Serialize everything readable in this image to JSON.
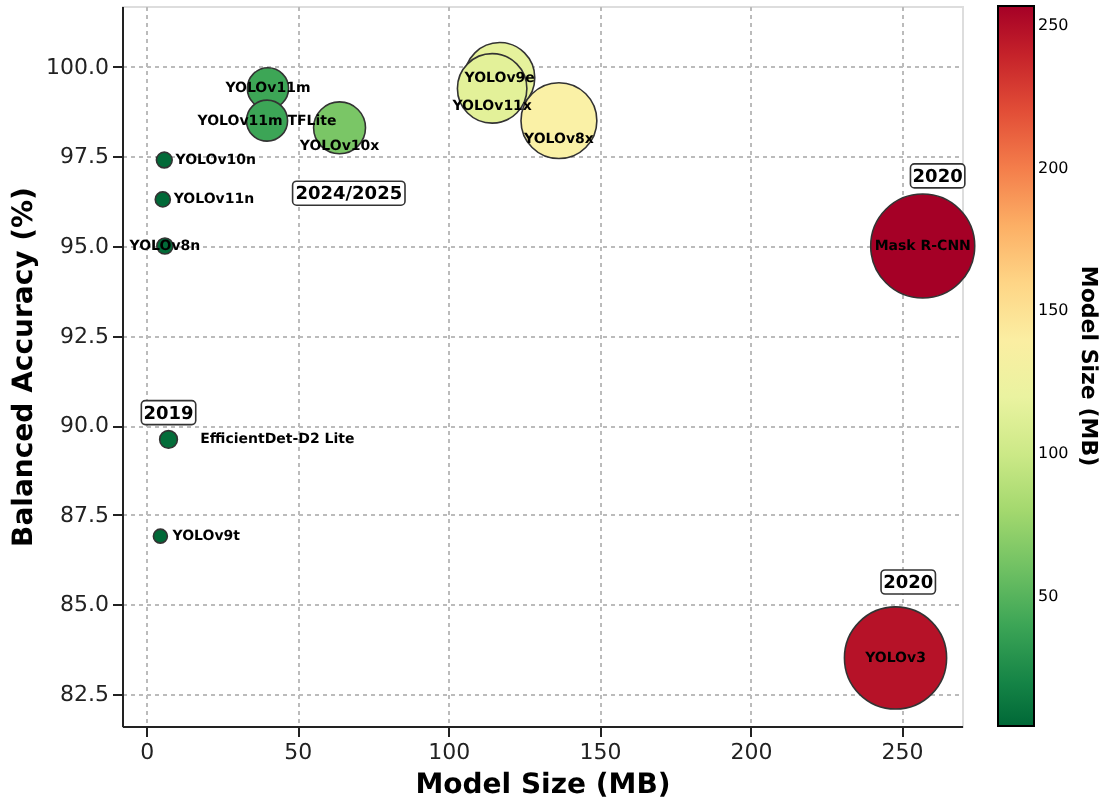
{
  "chart_data": {
    "type": "bubble",
    "xlabel": "Model Size (MB)",
    "ylabel": "Balanced Accuracy (%)",
    "clabel": "Model Size (MB)",
    "series": [
      {
        "name": "YOLOv11m",
        "x": [
          40.3
        ],
        "values": [
          99.4
        ],
        "sizes": [
          0.157
        ],
        "cvalues": [
          40.3
        ]
      },
      {
        "name": "YOLOv11m TFLite",
        "x": [
          40
        ],
        "values": [
          98.5
        ],
        "sizes": [
          0.156
        ],
        "cvalues": [
          40
        ]
      },
      {
        "name": "YOLOv10x",
        "x": [
          64
        ],
        "values": [
          98.3
        ],
        "sizes": [
          0.249
        ],
        "cvalues": [
          64
        ]
      },
      {
        "name": "YOLOv9e",
        "x": [
          117
        ],
        "values": [
          99.7
        ],
        "sizes": [
          0.455
        ],
        "cvalues": [
          117
        ]
      },
      {
        "name": "YOLOv11x",
        "x": [
          114.5
        ],
        "values": [
          99.4
        ],
        "sizes": [
          0.446
        ],
        "cvalues": [
          114.5
        ]
      },
      {
        "name": "YOLOv8x",
        "x": [
          136.6
        ],
        "values": [
          98.5
        ],
        "sizes": [
          0.532
        ],
        "cvalues": [
          136.6
        ]
      },
      {
        "name": "YOLOv10n",
        "x": [
          6
        ],
        "values": [
          97.4
        ],
        "sizes": [
          0.023
        ],
        "cvalues": [
          6
        ]
      },
      {
        "name": "YOLOv11n",
        "x": [
          5.5
        ],
        "values": [
          96.3
        ],
        "sizes": [
          0.021
        ],
        "cvalues": [
          5.5
        ]
      },
      {
        "name": "YOLOv8n",
        "x": [
          6.2
        ],
        "values": [
          95.0
        ],
        "sizes": [
          0.024
        ],
        "cvalues": [
          6.2
        ]
      },
      {
        "name": "EfficientDet-D2 Lite",
        "x": [
          7.4
        ],
        "values": [
          89.6
        ],
        "sizes": [
          0.029
        ],
        "cvalues": [
          7.4
        ]
      },
      {
        "name": "YOLOv9t",
        "x": [
          4.7
        ],
        "values": [
          86.9
        ],
        "sizes": [
          0.018
        ],
        "cvalues": [
          4.7
        ]
      },
      {
        "name": "Mask R-CNN",
        "x": [
          257
        ],
        "values": [
          95.0
        ],
        "sizes": [
          1
        ],
        "cvalues": [
          257
        ]
      },
      {
        "name": "YOLOv3",
        "x": [
          248
        ],
        "values": [
          83.5
        ],
        "sizes": [
          0.965
        ],
        "cvalues": [
          248
        ]
      }
    ],
    "annotations": [
      "2024/2025",
      {
        "text": "2019",
        "x": 7.4,
        "y": 89.6
      },
      "2020",
      "2020"
    ],
    "xlim": [
      -8,
      270
    ],
    "xticks": [
      0,
      50,
      100,
      150,
      200,
      250
    ],
    "ylim": [
      81.6,
      101.7
    ],
    "yticks": [
      82.5,
      {
        "value": 85,
        "label": "85.0"
      },
      87.5,
      {
        "value": 90,
        "label": "90.0"
      },
      92.5,
      {
        "value": 95,
        "label": "95.0"
      },
      97.5,
      {
        "value": 100,
        "label": "100.0"
      }
    ],
    "clim": [
      4.7,
      257
    ],
    "cticks": [
      50,
      100,
      150,
      200,
      250
    ],
    "grid": true
  }
}
